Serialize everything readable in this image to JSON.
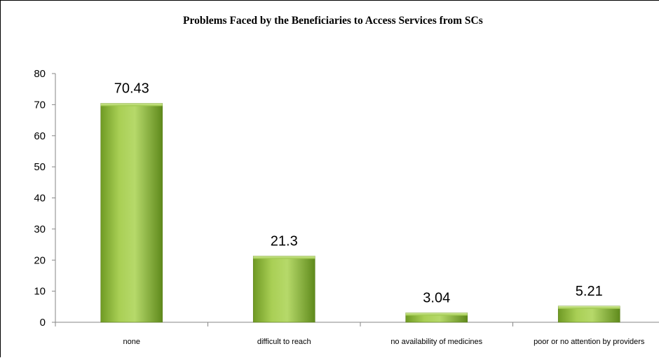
{
  "chart_data": {
    "type": "bar",
    "title": "Problems Faced by the Beneficiaries to Access Services from SCs",
    "xlabel": "",
    "ylabel": "",
    "categories": [
      "none",
      "difficult to reach",
      "no availability of medicines",
      "poor or no attention by providers"
    ],
    "values": [
      70.43,
      21.3,
      3.04,
      5.21
    ],
    "data_labels": [
      "70.43",
      "21.3",
      "3.04",
      "5.21"
    ],
    "ylim": [
      0,
      80
    ],
    "yticks": [
      0,
      10,
      20,
      30,
      40,
      50,
      60,
      70,
      80
    ],
    "grid": false,
    "legend": "none",
    "bar_color": "#8fb83a"
  }
}
